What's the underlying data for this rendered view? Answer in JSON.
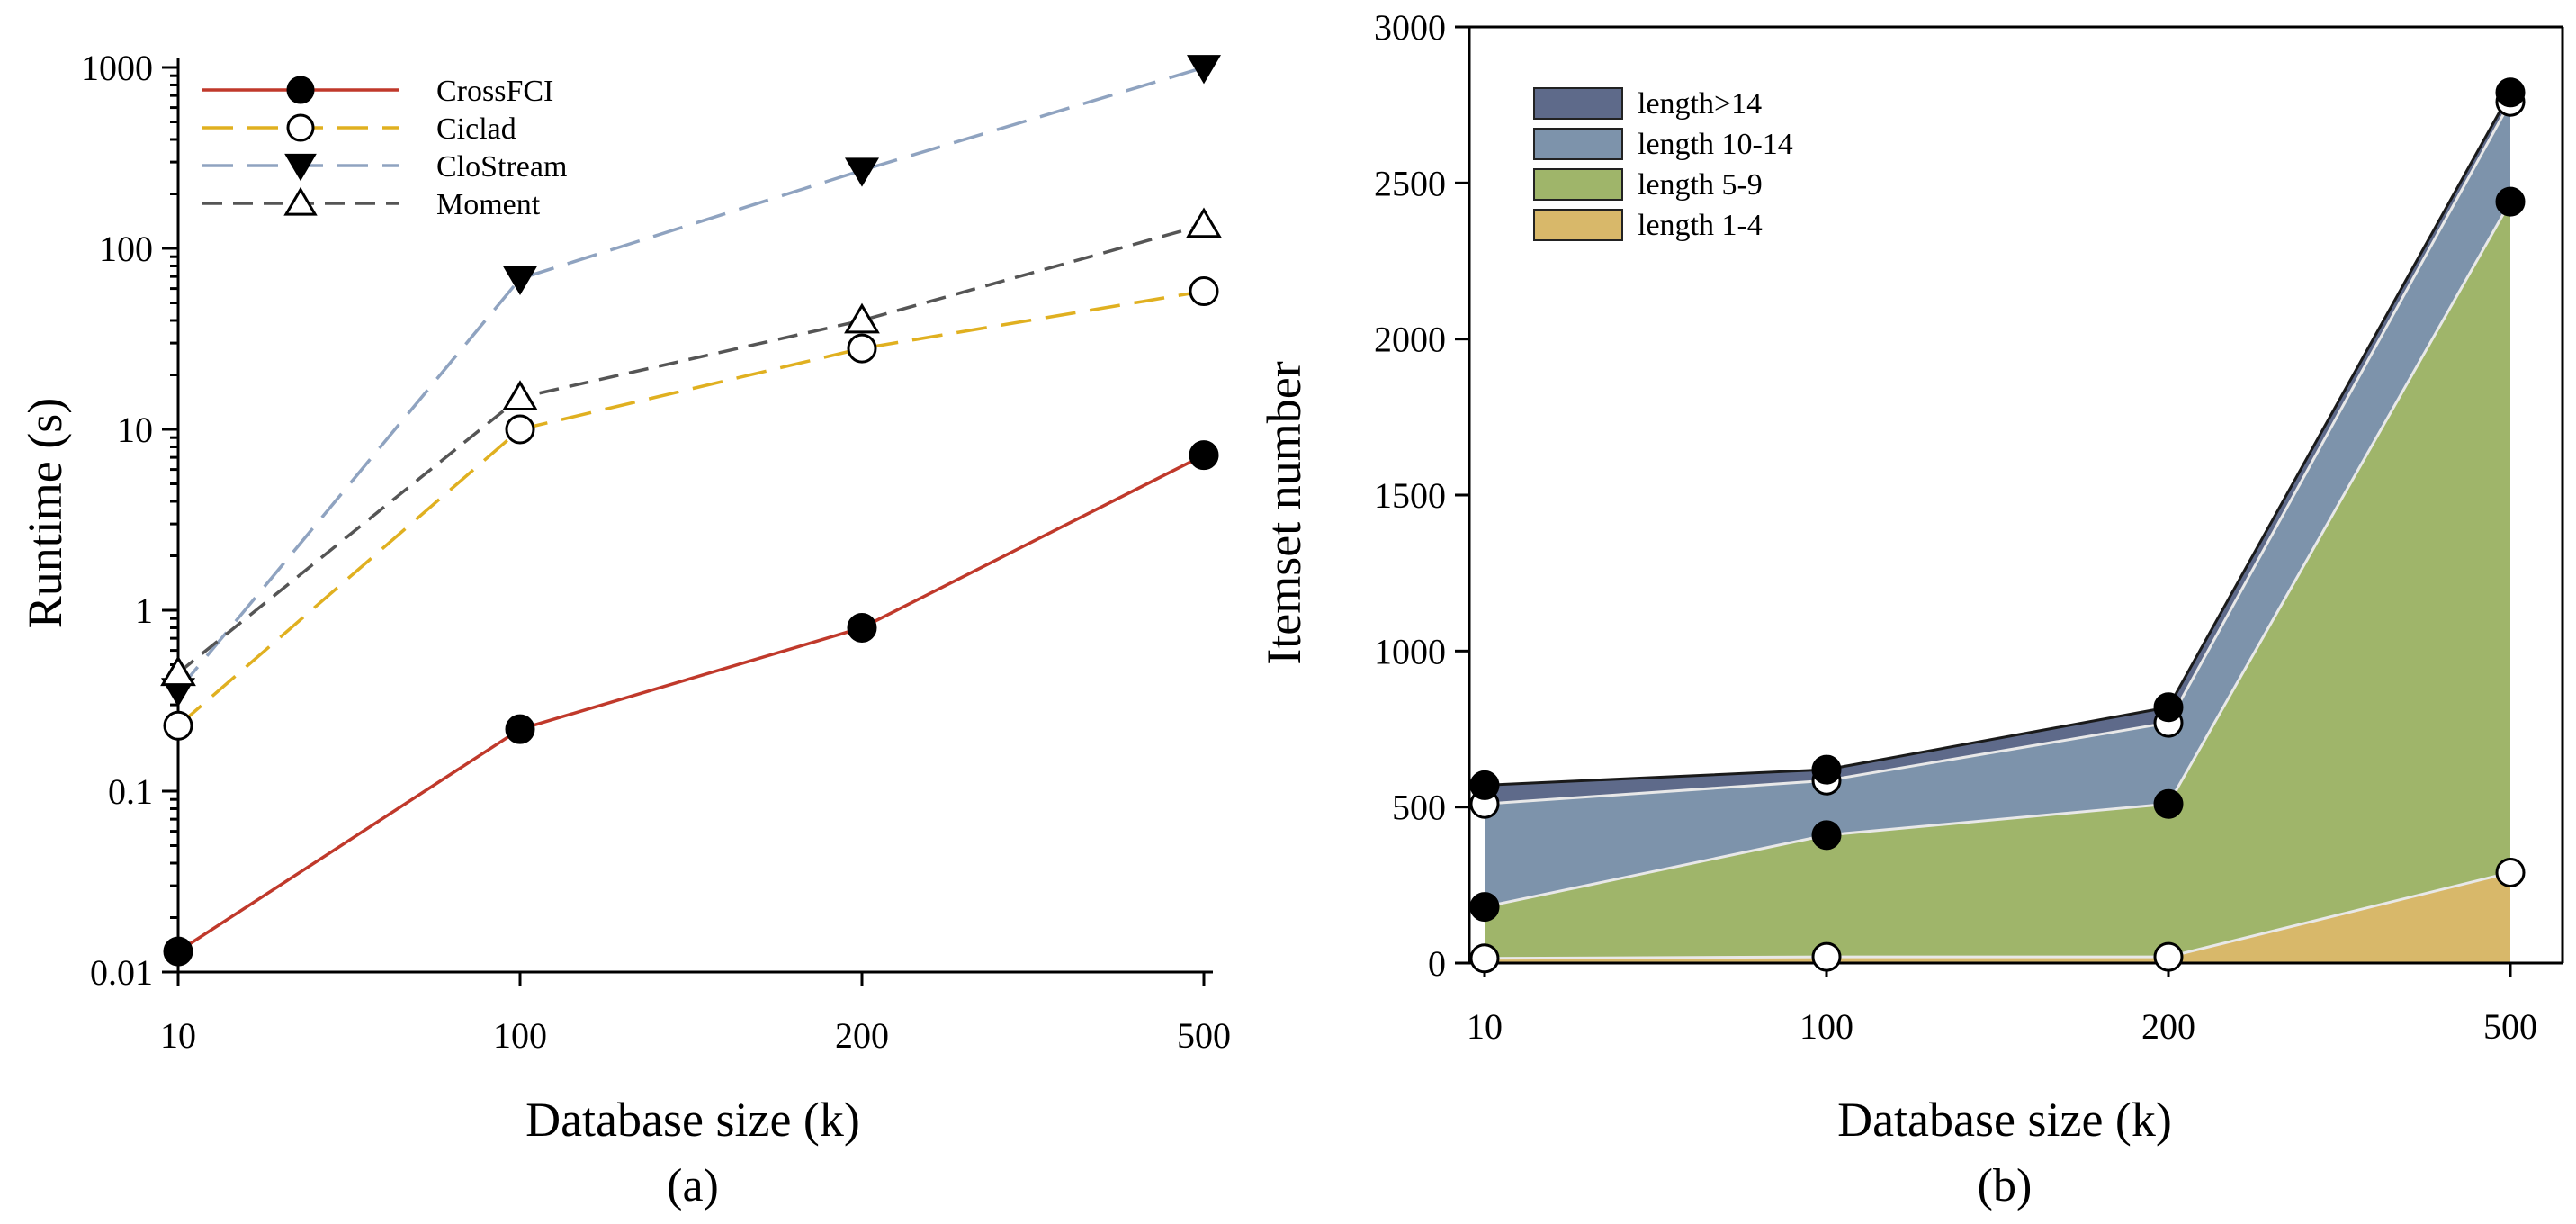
{
  "chart_data": [
    {
      "type": "line",
      "caption": "(a)",
      "xlabel": "Database size (k)",
      "ylabel": "Runtime (s)",
      "yscale": "log",
      "ylim": [
        0.01,
        1000
      ],
      "categories": [
        "10",
        "100",
        "200",
        "500"
      ],
      "yticks": [
        "0.01",
        "0.1",
        "1",
        "10",
        "100",
        "1000"
      ],
      "legend_position": "top-left",
      "series": [
        {
          "name": "CrossFCI",
          "values": [
            0.013,
            0.22,
            0.8,
            7.2
          ],
          "color": "#c0392b",
          "dash": "solid",
          "marker": "circle-filled"
        },
        {
          "name": "Ciclad",
          "values": [
            0.23,
            10,
            28,
            58
          ],
          "color": "#e0b020",
          "dash": "long",
          "marker": "circle-open"
        },
        {
          "name": "CloStream",
          "values": [
            0.36,
            68,
            270,
            1000
          ],
          "color": "#8fa3c0",
          "dash": "long",
          "marker": "triangle-down-filled"
        },
        {
          "name": "Moment",
          "values": [
            0.45,
            15,
            40,
            135
          ],
          "color": "#555555",
          "dash": "medium",
          "marker": "triangle-up-open"
        }
      ]
    },
    {
      "type": "area",
      "stacked": true,
      "caption": "(b)",
      "xlabel": "Database size (k)",
      "ylabel": "Itemset number",
      "ylim": [
        0,
        3000
      ],
      "categories": [
        "10",
        "100",
        "200",
        "500"
      ],
      "yticks": [
        "0",
        "500",
        "1000",
        "1500",
        "2000",
        "2500",
        "3000"
      ],
      "legend_position": "top-left",
      "series": [
        {
          "name": "length 1-4",
          "values": [
            15,
            20,
            20,
            290
          ],
          "color": "#d8b86a"
        },
        {
          "name": "length 5-9",
          "values": [
            165,
            390,
            490,
            2150
          ],
          "color": "#9fb56a"
        },
        {
          "name": "length 10-14",
          "values": [
            330,
            175,
            260,
            320
          ],
          "color": "#7d93ab"
        },
        {
          "name": "length>14",
          "values": [
            60,
            35,
            50,
            30
          ],
          "color": "#5e6a8a"
        }
      ],
      "cumulative_markers": [
        {
          "values": [
            15,
            20,
            20,
            290
          ],
          "marker": "circle-open"
        },
        {
          "values": [
            180,
            410,
            510,
            2440
          ],
          "marker": "circle-filled"
        },
        {
          "values": [
            510,
            585,
            770,
            2760
          ],
          "marker": "circle-open"
        },
        {
          "values": [
            570,
            620,
            820,
            2790
          ],
          "marker": "circle-filled"
        }
      ]
    }
  ]
}
